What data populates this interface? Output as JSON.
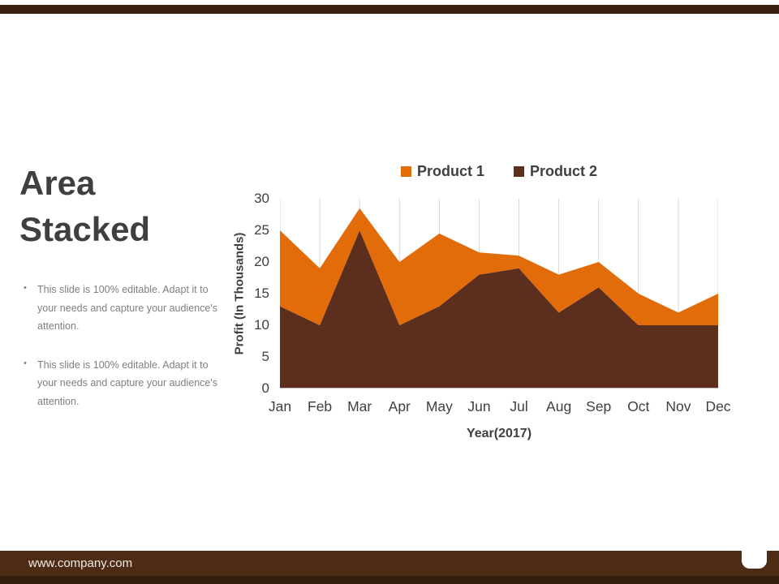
{
  "slide": {
    "title": "Area Stacked",
    "bullets": [
      "This slide is 100% editable. Adapt it to your needs and capture your audience's attention.",
      "This slide is 100% editable. Adapt it to your needs and capture your audience's attention."
    ]
  },
  "footer": {
    "url": "www.company.com"
  },
  "colors": {
    "topbar": "#3B2210",
    "footer_bar": "#4E2B15",
    "footer_strip": "#341C0B",
    "grid": "#D9D9D9",
    "axis_line": "#BFBFBF",
    "axis_text": "#3F3F3F",
    "product1": "#E36C0A",
    "product2": "#5C2E1E"
  },
  "chart_data": {
    "type": "area",
    "stacked": true,
    "title": "",
    "categories": [
      "Jan",
      "Feb",
      "Mar",
      "Apr",
      "May",
      "Jun",
      "Jul",
      "Aug",
      "Sep",
      "Oct",
      "Nov",
      "Dec"
    ],
    "series": [
      {
        "name": "Product 2",
        "color": "#5C2E1E",
        "values": [
          13,
          10,
          25,
          10,
          13,
          18,
          19,
          12,
          16,
          10,
          10,
          10
        ]
      },
      {
        "name": "Product 1",
        "color": "#E36C0A",
        "values": [
          12,
          9,
          3.5,
          10,
          11.5,
          3.5,
          2,
          6,
          4,
          5,
          2,
          5
        ]
      }
    ],
    "stacked_totals": [
      25,
      19,
      28.5,
      20,
      24.5,
      21.5,
      21,
      18,
      20,
      15,
      12,
      15
    ],
    "legend": [
      {
        "label": "Product 1",
        "color": "#E36C0A"
      },
      {
        "label": "Product 2",
        "color": "#5C2E1E"
      }
    ],
    "legend_position": "top",
    "grid": "vertical",
    "xlabel": "Year(2017)",
    "ylabel": "Profit (In Thousands)",
    "ylim": [
      0,
      30
    ],
    "yticks": [
      0,
      5,
      10,
      15,
      20,
      25,
      30
    ]
  }
}
